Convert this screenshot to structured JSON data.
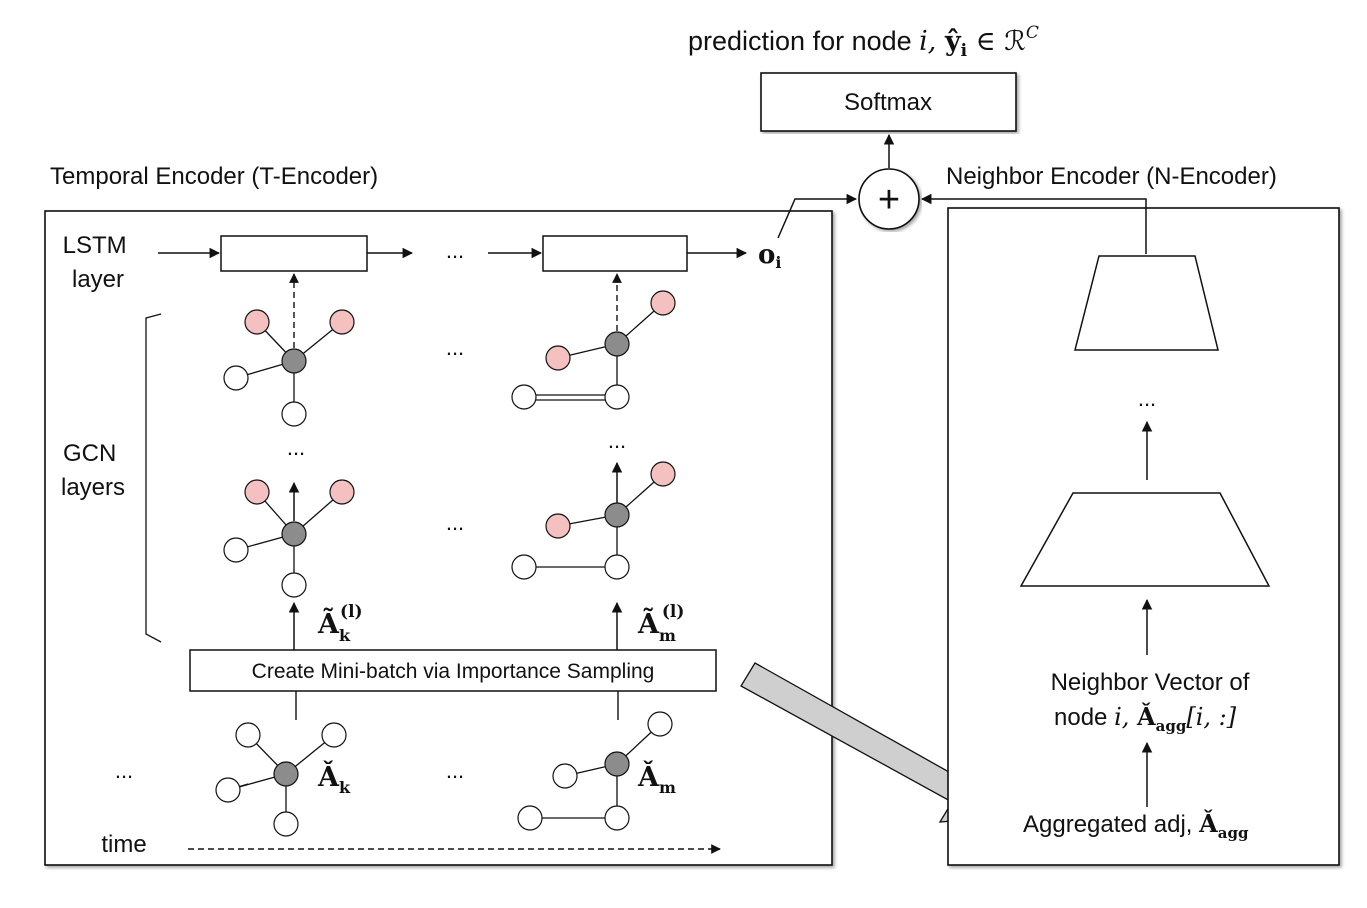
{
  "header": {
    "prediction_text": "prediction for node ",
    "prediction_var": "i, ",
    "prediction_yhat": "ŷ",
    "prediction_sub": "i",
    "prediction_in": " ∈ ℛ",
    "prediction_sup": "C",
    "softmax_label": "Softmax",
    "plus_symbol": "+"
  },
  "temporal_encoder": {
    "title": "Temporal Encoder (T-Encoder)",
    "lstm_label_line1": "LSTM",
    "lstm_label_line2": "layer",
    "gcn_label_line1": "GCN",
    "gcn_label_line2": "layers",
    "output_symbol": "o",
    "output_sub": "i",
    "ellipsis": "...",
    "adj_k_norm": "Ã",
    "adj_k_sub": "k",
    "adj_k_sup": "(l)",
    "adj_m_norm": "Ã",
    "adj_m_sub": "m",
    "adj_m_sup": "(l)",
    "minibatch_label": "Create Mini-batch via Importance Sampling",
    "adj_k_raw": "Ǎ",
    "adj_k_raw_sub": "k",
    "adj_m_raw": "Ǎ",
    "adj_m_raw_sub": "m",
    "time_label": "time"
  },
  "neighbor_encoder": {
    "title": "Neighbor Encoder (N-Encoder)",
    "ellipsis": "...",
    "vector_line1": "Neighbor Vector of",
    "vector_line2_text": "node ",
    "vector_line2_var": "i, ",
    "vector_adj": "Ǎ",
    "vector_adj_sub": "agg",
    "vector_index": "[i, :]",
    "aggregated_text": "Aggregated adj, ",
    "aggregated_adj": "Ǎ",
    "aggregated_sub": "agg"
  },
  "colors": {
    "center_node": "#8c8c8c",
    "sampled_node": "#f4c0c0",
    "plain_node": "#ffffff",
    "big_arrow": "#cfcfcf",
    "stroke": "#111111"
  }
}
